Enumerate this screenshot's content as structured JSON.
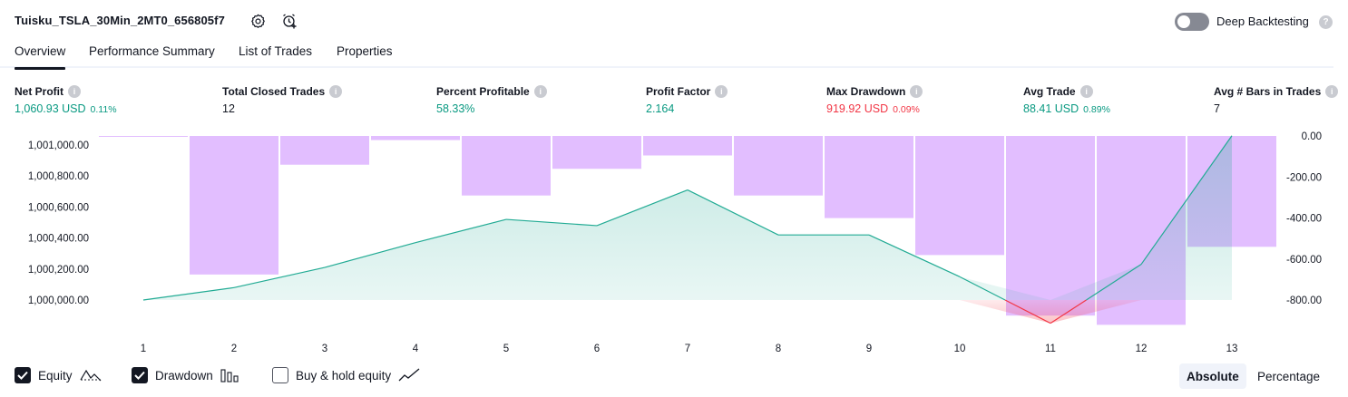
{
  "header": {
    "strategy_name": "Tuisku_TSLA_30Min_2MT0_656805f7",
    "icons": [
      "settings-icon",
      "add-alert-icon"
    ],
    "deep_backtesting": {
      "label": "Deep Backtesting",
      "enabled": false,
      "help": "?"
    }
  },
  "tabs": [
    {
      "label": "Overview",
      "active": true
    },
    {
      "label": "Performance Summary",
      "active": false
    },
    {
      "label": "List of Trades",
      "active": false
    },
    {
      "label": "Properties",
      "active": false
    }
  ],
  "metrics": [
    {
      "label": "Net Profit",
      "value": "1,060.93 USD",
      "pct": "0.11%",
      "color": "#089981"
    },
    {
      "label": "Total Closed Trades",
      "value": "12",
      "pct": "",
      "color": "#131722"
    },
    {
      "label": "Percent Profitable",
      "value": "58.33%",
      "pct": "",
      "color": "#089981"
    },
    {
      "label": "Profit Factor",
      "value": "2.164",
      "pct": "",
      "color": "#089981"
    },
    {
      "label": "Max Drawdown",
      "value": "919.92 USD",
      "pct": "0.09%",
      "color": "#f23645"
    },
    {
      "label": "Avg Trade",
      "value": "88.41 USD",
      "pct": "0.89%",
      "color": "#089981"
    },
    {
      "label": "Avg # Bars in Trades",
      "value": "7",
      "pct": "",
      "color": "#131722"
    }
  ],
  "chart_data": {
    "type": "line",
    "x": [
      1,
      2,
      3,
      4,
      5,
      6,
      7,
      8,
      9,
      10,
      11,
      12,
      13
    ],
    "series": [
      {
        "type": "area",
        "axis": "left",
        "values": [
          1000000,
          1000080,
          1000210,
          1000370,
          1000520,
          1000480,
          1000710,
          1000420,
          1000420,
          1000150,
          999850,
          1000230,
          1001060
        ]
      },
      {
        "type": "bar",
        "axis": "right",
        "values": [
          -2,
          -675,
          -140,
          -20,
          -290,
          -160,
          -95,
          -290,
          -400,
          -580,
          -875,
          -920,
          -540
        ]
      }
    ],
    "left_axis": {
      "ticks": [
        "1,000,000.00",
        "1,000,200.00",
        "1,000,400.00",
        "1,000,600.00",
        "1,000,800.00",
        "1,001,000.00"
      ],
      "range": [
        999950,
        1001060
      ]
    },
    "right_axis": {
      "ticks": [
        "-800.00",
        "-600.00",
        "-400.00",
        "-200.00",
        "0.00"
      ],
      "range": [
        -945,
        0
      ]
    },
    "x_ticks": [
      "1",
      "2",
      "3",
      "4",
      "5",
      "6",
      "7",
      "8",
      "9",
      "10",
      "11",
      "12",
      "13"
    ],
    "colors": {
      "equity_line": "#22ab94",
      "equity_fill": "#22ab94",
      "below_line": "#f23645",
      "below_fill": "#f23645",
      "drawdown_bar": "#ce93ff",
      "axis_text": "#131722"
    },
    "grid": false
  },
  "legend": {
    "equity": {
      "label": "Equity",
      "checked": true,
      "icon": "equity-line-icon"
    },
    "drawdown": {
      "label": "Drawdown",
      "checked": true,
      "icon": "drawdown-bars-icon"
    },
    "buy_hold": {
      "label": "Buy & hold equity",
      "checked": false,
      "icon": "buy-hold-line-icon"
    }
  },
  "modes": [
    {
      "label": "Absolute",
      "active": true
    },
    {
      "label": "Percentage",
      "active": false
    }
  ]
}
